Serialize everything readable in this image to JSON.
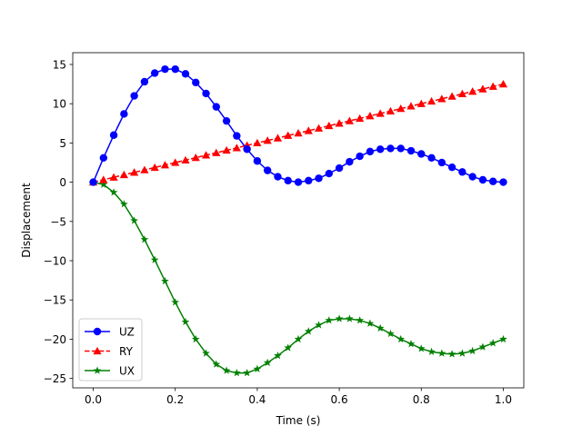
{
  "chart_data": {
    "type": "line",
    "title": "",
    "xlabel": "Time (s)",
    "ylabel": "Displacement",
    "xlim": [
      -0.05,
      1.05
    ],
    "ylim": [
      -26.2,
      16.5
    ],
    "xticks": [
      0.0,
      0.2,
      0.4,
      0.6,
      0.8,
      1.0
    ],
    "xtick_labels": [
      "0.0",
      "0.2",
      "0.4",
      "0.6",
      "0.8",
      "1.0"
    ],
    "yticks": [
      -25,
      -20,
      -15,
      -10,
      -5,
      0,
      5,
      10,
      15
    ],
    "ytick_labels": [
      "−25",
      "−20",
      "−15",
      "−10",
      "−5",
      "0",
      "5",
      "10",
      "15"
    ],
    "grid": false,
    "legend_position": "lower-left",
    "x": [
      0.0,
      0.025,
      0.05,
      0.075,
      0.1,
      0.125,
      0.15,
      0.175,
      0.2,
      0.225,
      0.25,
      0.275,
      0.3,
      0.325,
      0.35,
      0.375,
      0.4,
      0.425,
      0.45,
      0.475,
      0.5,
      0.525,
      0.55,
      0.575,
      0.6,
      0.625,
      0.65,
      0.675,
      0.7,
      0.725,
      0.75,
      0.775,
      0.8,
      0.825,
      0.85,
      0.875,
      0.9,
      0.925,
      0.95,
      0.975,
      1.0
    ],
    "series": [
      {
        "name": "UZ",
        "color": "#0000ff",
        "linestyle": "solid",
        "marker": "circle",
        "values": [
          0.0,
          3.1,
          6.0,
          8.7,
          11.0,
          12.8,
          13.9,
          14.4,
          14.4,
          13.8,
          12.7,
          11.3,
          9.6,
          7.8,
          5.9,
          4.2,
          2.7,
          1.5,
          0.7,
          0.2,
          0.0,
          0.2,
          0.5,
          1.1,
          1.8,
          2.6,
          3.3,
          3.9,
          4.2,
          4.3,
          4.3,
          4.0,
          3.6,
          3.1,
          2.5,
          1.9,
          1.3,
          0.7,
          0.3,
          0.1,
          0.0
        ]
      },
      {
        "name": "RY",
        "color": "#ff0000",
        "linestyle": "dashed",
        "marker": "triangle",
        "values": [
          0.0,
          0.31,
          0.62,
          0.94,
          1.25,
          1.56,
          1.87,
          2.19,
          2.5,
          2.81,
          3.12,
          3.44,
          3.75,
          4.06,
          4.37,
          4.69,
          5.0,
          5.31,
          5.62,
          5.94,
          6.25,
          6.56,
          6.87,
          7.19,
          7.5,
          7.81,
          8.12,
          8.44,
          8.75,
          9.06,
          9.37,
          9.69,
          10.0,
          10.31,
          10.62,
          10.94,
          11.25,
          11.56,
          11.87,
          12.19,
          12.5
        ]
      },
      {
        "name": "UX",
        "color": "#008000",
        "linestyle": "solid",
        "marker": "star",
        "values": [
          0.0,
          -0.3,
          -1.3,
          -2.8,
          -4.9,
          -7.3,
          -9.9,
          -12.6,
          -15.3,
          -17.8,
          -20.0,
          -21.8,
          -23.2,
          -24.0,
          -24.3,
          -24.3,
          -23.8,
          -23.0,
          -22.1,
          -21.1,
          -20.0,
          -19.0,
          -18.2,
          -17.6,
          -17.4,
          -17.4,
          -17.6,
          -18.0,
          -18.6,
          -19.3,
          -20.0,
          -20.6,
          -21.2,
          -21.6,
          -21.8,
          -21.9,
          -21.8,
          -21.5,
          -21.0,
          -20.5,
          -20.0
        ]
      }
    ]
  }
}
